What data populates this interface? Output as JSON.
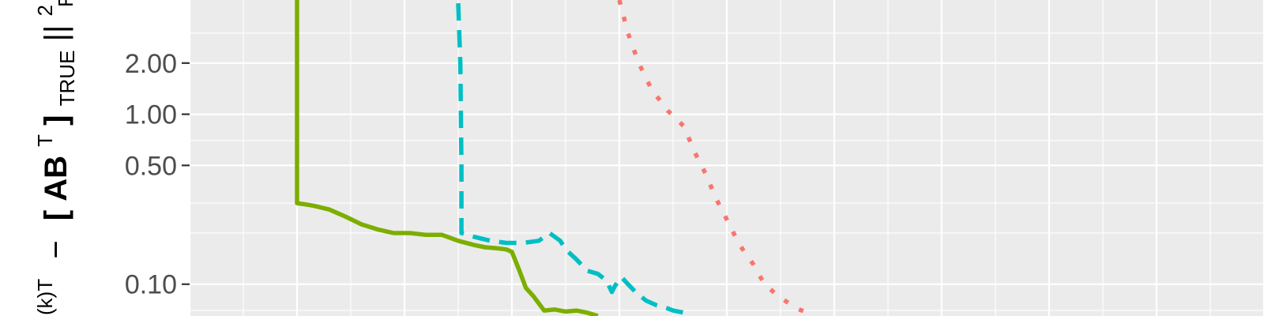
{
  "chart_data": {
    "type": "line",
    "title": "",
    "xlabel": "",
    "ylabel": {
      "part1": "(k)T",
      "part2": "−",
      "part3": "[",
      "part4": "AB",
      "part5": "T",
      "part6": "]",
      "part7": "TRUE",
      "part8": "||",
      "part9": "2",
      "part10": "F"
    },
    "y_scale": "log",
    "ylim": [
      0.065,
      4.7
    ],
    "xlim": [
      0,
      100
    ],
    "grid": true,
    "legend": "none",
    "y_ticks": [
      {
        "value": 2.0,
        "label": "2.00"
      },
      {
        "value": 1.0,
        "label": "1.00"
      },
      {
        "value": 0.5,
        "label": "0.50"
      },
      {
        "value": 0.1,
        "label": "0.10"
      }
    ],
    "x_major_breaks": [
      0,
      10,
      20,
      30,
      40,
      50,
      60,
      70,
      80,
      90,
      100
    ],
    "y_minor_breaks": [
      3.0,
      0.7,
      0.3,
      0.2,
      0.07
    ],
    "series": [
      {
        "color": "#7cae00",
        "dash": "solid",
        "points": [
          [
            10.0,
            4.7
          ],
          [
            10.0,
            1.1
          ],
          [
            10.0,
            0.3
          ],
          [
            11.5,
            0.29
          ],
          [
            13.0,
            0.275
          ],
          [
            14.5,
            0.25
          ],
          [
            16.0,
            0.225
          ],
          [
            17.5,
            0.21
          ],
          [
            19.0,
            0.2
          ],
          [
            20.5,
            0.2
          ],
          [
            22.0,
            0.195
          ],
          [
            23.5,
            0.195
          ],
          [
            25.0,
            0.18
          ],
          [
            26.5,
            0.17
          ],
          [
            27.5,
            0.165
          ],
          [
            28.5,
            0.163
          ],
          [
            29.5,
            0.16
          ],
          [
            30.0,
            0.155
          ],
          [
            30.7,
            0.12
          ],
          [
            31.3,
            0.095
          ],
          [
            32.0,
            0.085
          ],
          [
            33.0,
            0.07
          ],
          [
            34.0,
            0.071
          ],
          [
            35.0,
            0.069
          ],
          [
            36.0,
            0.07
          ],
          [
            37.0,
            0.068
          ],
          [
            38.0,
            0.065
          ]
        ]
      },
      {
        "color": "#00bfc4",
        "dash": "dashed",
        "points": [
          [
            25.0,
            4.5
          ],
          [
            25.2,
            2.0
          ],
          [
            25.3,
            0.5
          ],
          [
            25.3,
            0.2
          ],
          [
            26.5,
            0.19
          ],
          [
            28.0,
            0.18
          ],
          [
            29.5,
            0.175
          ],
          [
            31.0,
            0.175
          ],
          [
            32.5,
            0.18
          ],
          [
            33.5,
            0.2
          ],
          [
            34.5,
            0.18
          ],
          [
            35.0,
            0.16
          ],
          [
            36.0,
            0.14
          ],
          [
            37.0,
            0.12
          ],
          [
            38.0,
            0.115
          ],
          [
            38.8,
            0.105
          ],
          [
            39.3,
            0.09
          ],
          [
            39.6,
            0.098
          ],
          [
            40.2,
            0.11
          ],
          [
            40.8,
            0.1
          ],
          [
            41.5,
            0.09
          ],
          [
            42.5,
            0.08
          ],
          [
            43.5,
            0.075
          ],
          [
            44.5,
            0.072
          ],
          [
            45.0,
            0.07
          ],
          [
            46.0,
            0.068
          ],
          [
            46.5,
            0.066
          ]
        ]
      },
      {
        "color": "#f8766d",
        "dash": "dotted",
        "points": [
          [
            40.0,
            4.7
          ],
          [
            40.8,
            3.0
          ],
          [
            41.8,
            2.0
          ],
          [
            43.0,
            1.4
          ],
          [
            44.5,
            1.05
          ],
          [
            46.0,
            0.85
          ],
          [
            47.0,
            0.6
          ],
          [
            48.0,
            0.45
          ],
          [
            49.0,
            0.32
          ],
          [
            50.0,
            0.24
          ],
          [
            51.2,
            0.17
          ],
          [
            52.5,
            0.13
          ],
          [
            53.5,
            0.1
          ],
          [
            54.8,
            0.085
          ],
          [
            56.5,
            0.072
          ],
          [
            58.0,
            0.066
          ]
        ]
      }
    ]
  }
}
